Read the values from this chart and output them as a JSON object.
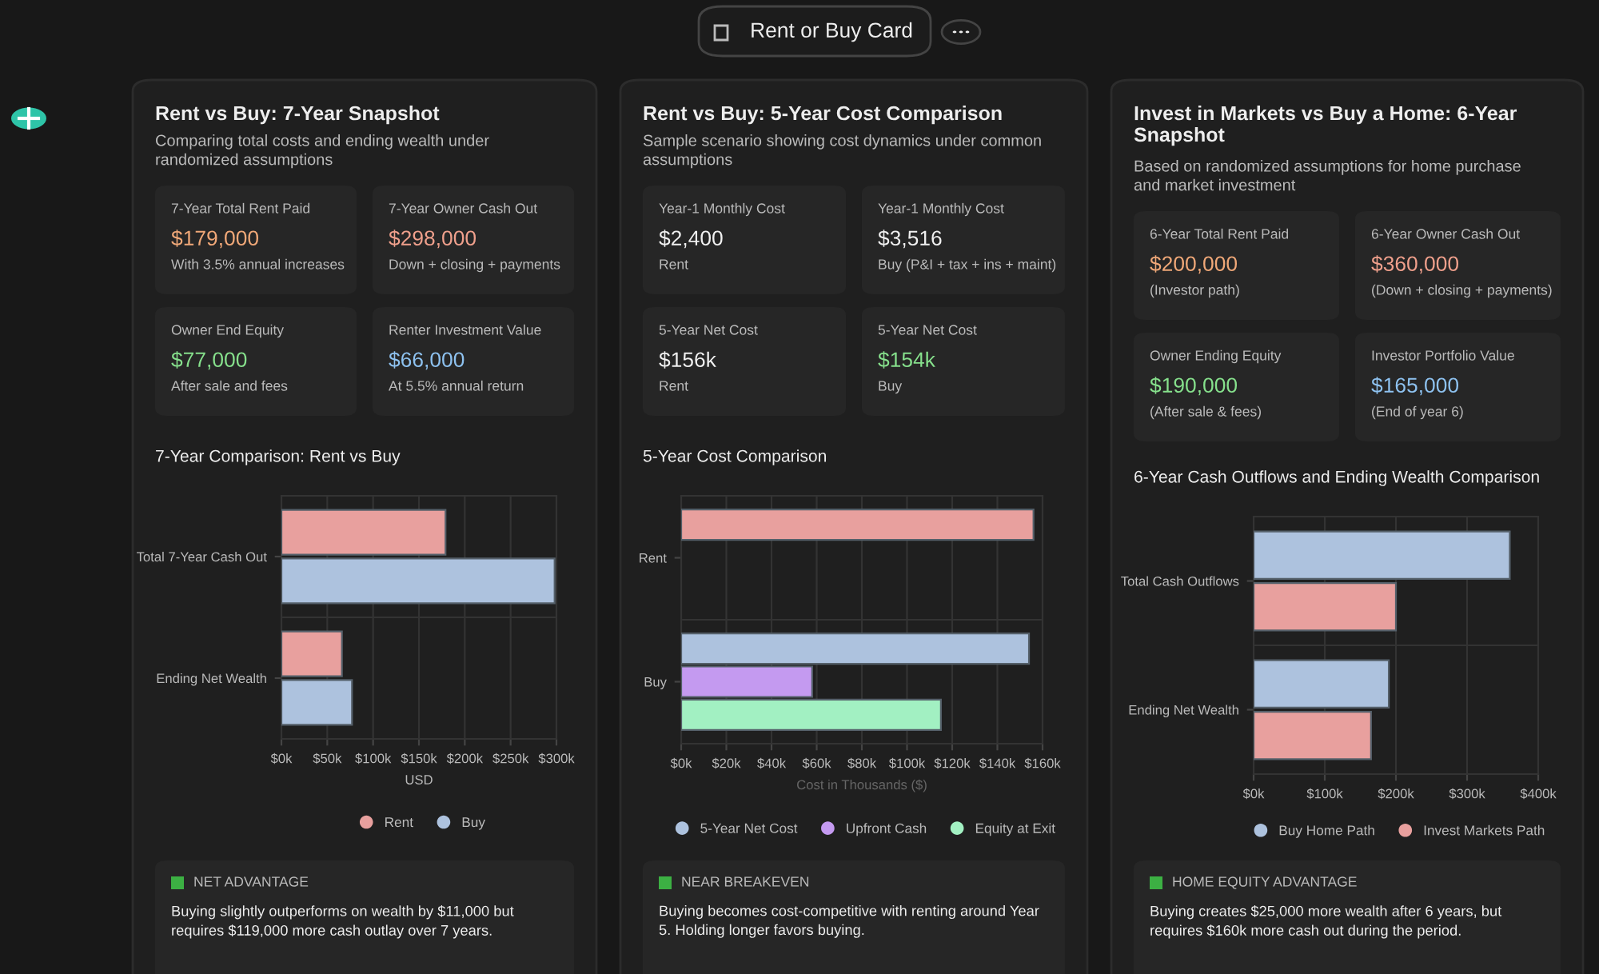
{
  "chart_data": [
    {
      "type": "other",
      "title": "Rent or Buy Card"
    },
    {
      "type": "other",
      "title": "Rent vs Buy: 7-Year Snapshot",
      "subtitle": "Comparing total costs and ending wealth under\nrandomized assumptions",
      "annotations": [
        "7-Year Total Rent Paid",
        "$179,000",
        "With 3.5% annual increases",
        "7-Year Owner Cash Out",
        "$298,000",
        "Down + closing + payments",
        "Owner End Equity",
        "$77,000",
        "After sale and fees",
        "Renter Investment Value",
        "$66,000",
        "At 5.5% annual return",
        "NET ADVANTAGE",
        "Buying slightly outperforms on wealth by $11,000 but\nrequires $119,000 more cash outlay over 7 years."
      ],
      "colors": [
        "#f0a878",
        "#f0a08c",
        "#86e08c",
        "#8ec2f0"
      ]
    },
    {
      "type": "bar",
      "orientation": "horizontal",
      "title": "7-Year Comparison: Rent vs Buy",
      "xlabel": "USD",
      "categories": [
        "Total 7-Year Cash Out",
        "Ending Net Wealth"
      ],
      "series": [
        {
          "name": "Rent",
          "color": "#e8a09e",
          "values": [
            179000,
            66000
          ]
        },
        {
          "name": "Buy",
          "color": "#adc2de",
          "values": [
            298000,
            77000
          ]
        }
      ],
      "xlim": [
        0,
        300000
      ],
      "xticks": [
        {
          "value": 0,
          "label": "$0k"
        },
        {
          "value": 50000,
          "label": "$50k"
        },
        {
          "value": 100000,
          "label": "$100k"
        },
        {
          "value": 150000,
          "label": "$150k"
        },
        {
          "value": 200000,
          "label": "$200k"
        },
        {
          "value": 250000,
          "label": "$250k"
        },
        {
          "value": 300000,
          "label": "$300k"
        }
      ],
      "grid": true,
      "legend": "bottom"
    },
    {
      "type": "other",
      "title": "Rent vs Buy: 5-Year Cost Comparison",
      "subtitle": "Sample scenario showing cost dynamics under common\nassumptions",
      "annotations": [
        "Year-1 Monthly Cost",
        "$2,400",
        "Rent",
        "Year-1 Monthly Cost",
        "$3,516",
        "Buy (P&I + tax + ins + maint)",
        "5-Year Net Cost",
        "$156k",
        "Rent",
        "5-Year Net Cost",
        "$154k",
        "Buy",
        "NEAR BREAKEVEN",
        "Buying becomes cost-competitive with renting around Year\n5. Holding longer favors buying."
      ],
      "colors": [
        "#f0f0f0",
        "#f0f0f0",
        "#f0f0f0",
        "#86e08c"
      ]
    },
    {
      "type": "bar",
      "orientation": "horizontal",
      "title": "5-Year Cost Comparison",
      "xlabel": "Cost in Thousands ($)",
      "categories": [
        "Rent",
        "Buy"
      ],
      "series": [
        {
          "name": "5-Year Net Cost",
          "color": "#adc2de",
          "colors": [
            "#e8a09e",
            "#adc2de"
          ],
          "values": [
            156000,
            154000
          ]
        },
        {
          "name": "Upfront Cash",
          "color": "#c49af0",
          "values": [
            null,
            58000
          ]
        },
        {
          "name": "Equity at Exit",
          "color": "#a2f0c2",
          "values": [
            null,
            115000
          ]
        }
      ],
      "xlim": [
        0,
        160000
      ],
      "xticks": [
        {
          "value": 0,
          "label": "$0k"
        },
        {
          "value": 20000,
          "label": "$20k"
        },
        {
          "value": 40000,
          "label": "$40k"
        },
        {
          "value": 60000,
          "label": "$60k"
        },
        {
          "value": 80000,
          "label": "$80k"
        },
        {
          "value": 100000,
          "label": "$100k"
        },
        {
          "value": 120000,
          "label": "$120k"
        },
        {
          "value": 140000,
          "label": "$140k"
        },
        {
          "value": 160000,
          "label": "$160k"
        }
      ],
      "grid": true,
      "legend": "bottom"
    },
    {
      "type": "other",
      "title": "Invest in Markets vs Buy a Home: 6-Year\nSnapshot",
      "subtitle": "Based on randomized assumptions for home purchase\nand market investment",
      "annotations": [
        "6-Year Total Rent Paid",
        "$200,000",
        "(Investor path)",
        "6-Year Owner Cash Out",
        "$360,000",
        "(Down + closing + payments)",
        "Owner Ending Equity",
        "$190,000",
        "(After sale & fees)",
        "Investor Portfolio Value",
        "$165,000",
        "(End of year 6)",
        "HOME EQUITY ADVANTAGE",
        "Buying creates $25,000 more wealth after 6 years, but\nrequires $160k more cash out during the period."
      ],
      "colors": [
        "#f0a878",
        "#f0a08c",
        "#86e08c",
        "#8ec2f0"
      ]
    },
    {
      "type": "bar",
      "orientation": "horizontal",
      "title": "6-Year Cash Outflows and Ending Wealth Comparison",
      "categories": [
        "Total Cash Outflows",
        "Ending Net Wealth"
      ],
      "series": [
        {
          "name": "Buy Home Path",
          "color": "#adc2de",
          "values": [
            360000,
            190000
          ]
        },
        {
          "name": "Invest Markets Path",
          "color": "#e8a09e",
          "values": [
            200000,
            165000
          ]
        }
      ],
      "xlim": [
        0,
        400000
      ],
      "xticks": [
        {
          "value": 0,
          "label": "$0k"
        },
        {
          "value": 100000,
          "label": "$100k"
        },
        {
          "value": 200000,
          "label": "$200k"
        },
        {
          "value": 300000,
          "label": "$300k"
        },
        {
          "value": 400000,
          "label": "$400k"
        }
      ],
      "grid": true,
      "legend": "bottom"
    }
  ]
}
